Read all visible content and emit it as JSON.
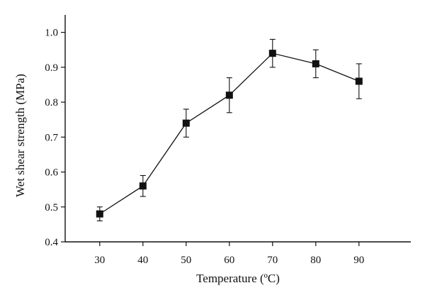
{
  "chart_data": {
    "type": "line",
    "xlabel": "Temperature (ºC)",
    "ylabel": "Wet shear strength (MPa)",
    "x": [
      30,
      40,
      50,
      60,
      70,
      80,
      90
    ],
    "series": [
      {
        "values": [
          0.48,
          0.56,
          0.74,
          0.82,
          0.94,
          0.91,
          0.86
        ],
        "errors": [
          0.02,
          0.03,
          0.04,
          0.05,
          0.04,
          0.04,
          0.05
        ]
      }
    ],
    "xlim": [
      22,
      102
    ],
    "ylim": [
      0.4,
      1.05
    ],
    "xticks": [
      30,
      40,
      50,
      60,
      70,
      80,
      90
    ],
    "yticks": [
      0.4,
      0.5,
      0.6,
      0.7,
      0.8,
      0.9,
      1.0
    ],
    "ytick_labels": [
      "0.4",
      "0.5",
      "0.6",
      "0.7",
      "0.8",
      "0.9",
      "1.0"
    ],
    "marker": "square",
    "grid": false,
    "colors": {
      "series": "#111111",
      "axis": "#111111"
    }
  }
}
